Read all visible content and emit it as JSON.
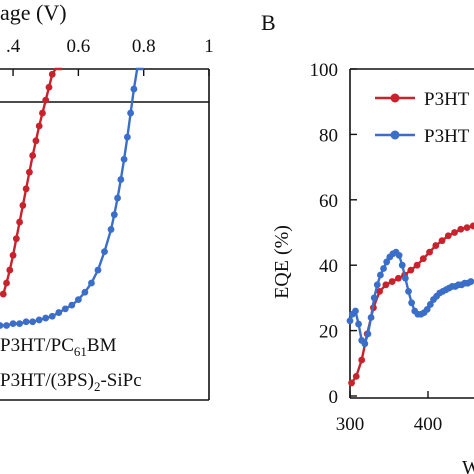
{
  "chart_data": [
    {
      "type": "line",
      "panel": "left (partially visible)",
      "xlabel_visible_fragment": "age (V)",
      "x_tick_labels": [
        ".4",
        "0.6",
        "0.8",
        "1"
      ],
      "x_ticks": [
        0.4,
        0.6,
        0.8,
        1.0
      ],
      "xlim": [
        0.36,
        1.0
      ],
      "ylim": [
        -8,
        2
      ],
      "zero_line_y": 0,
      "legend_position": "bottom",
      "series": [
        {
          "name": "P3HT/PC61BM",
          "legend_main": "P3HT/PC",
          "legend_sub": "61",
          "legend_tail": "BM",
          "color": "#c8232c",
          "marker": "circle",
          "x": [
            0.37,
            0.38,
            0.39,
            0.4,
            0.41,
            0.42,
            0.43,
            0.44,
            0.45,
            0.46,
            0.47,
            0.48,
            0.49,
            0.5,
            0.51,
            0.52,
            0.53,
            0.54,
            0.55
          ],
          "y": [
            -5.2,
            -4.9,
            -4.55,
            -4.15,
            -3.7,
            -3.25,
            -2.8,
            -2.35,
            -1.9,
            -1.45,
            -1.05,
            -0.65,
            -0.3,
            0.05,
            0.4,
            0.75,
            1.1,
            1.45,
            1.85
          ]
        },
        {
          "name": "P3HT/(3PS)2-SiPc",
          "legend_main": "P3HT/(3PS)",
          "legend_sub": "2",
          "legend_tail": "-SiPc",
          "color": "#3b6ec9",
          "marker": "circle",
          "x": [
            0.36,
            0.38,
            0.4,
            0.42,
            0.44,
            0.46,
            0.48,
            0.5,
            0.52,
            0.54,
            0.56,
            0.58,
            0.6,
            0.62,
            0.64,
            0.66,
            0.68,
            0.7,
            0.71,
            0.72,
            0.73,
            0.74,
            0.75,
            0.76,
            0.77,
            0.78,
            0.79,
            0.8
          ],
          "y": [
            -6.05,
            -6.05,
            -6.0,
            -6.0,
            -5.95,
            -5.95,
            -5.9,
            -5.85,
            -5.8,
            -5.7,
            -5.6,
            -5.5,
            -5.35,
            -5.15,
            -4.9,
            -4.55,
            -4.05,
            -3.45,
            -3.05,
            -2.6,
            -2.1,
            -1.55,
            -0.95,
            -0.3,
            0.35,
            1.0,
            1.6,
            2.1
          ]
        }
      ]
    },
    {
      "type": "line",
      "panel": "B",
      "panel_label": "B",
      "ylabel": "EQE (%)",
      "xlabel_visible_fragment": "W",
      "x_tick_labels": [
        "300",
        "400"
      ],
      "x_ticks": [
        300,
        400
      ],
      "xlim": [
        300,
        460
      ],
      "y_tick_labels": [
        "0",
        "20",
        "40",
        "60",
        "80",
        "100"
      ],
      "y_ticks": [
        0,
        20,
        40,
        60,
        80,
        100
      ],
      "ylim": [
        0,
        100
      ],
      "legend_position": "top-right",
      "series": [
        {
          "legend_fragment": "P3HT",
          "color": "#c8232c",
          "marker": "circle",
          "x": [
            302,
            308,
            315,
            322,
            330,
            338,
            346,
            354,
            362,
            370,
            378,
            386,
            394,
            402,
            410,
            418,
            426,
            434,
            442,
            450,
            458
          ],
          "y": [
            4,
            6,
            11,
            19,
            27,
            32,
            34,
            35,
            36,
            37,
            38.5,
            40,
            42,
            44,
            46,
            47.5,
            49,
            50,
            51,
            51.5,
            52
          ]
        },
        {
          "legend_fragment": "P3HT",
          "color": "#3b6ec9",
          "marker": "circle",
          "x": [
            300,
            303,
            307,
            311,
            315,
            319,
            323,
            327,
            331,
            335,
            339,
            343,
            347,
            351,
            355,
            359,
            363,
            367,
            371,
            375,
            379,
            383,
            387,
            391,
            395,
            399,
            403,
            407,
            411,
            415,
            419,
            423,
            427,
            431,
            435,
            439,
            443,
            447,
            451,
            455,
            459
          ],
          "y": [
            23,
            25,
            26,
            22,
            17,
            16,
            19,
            24,
            30,
            34,
            37,
            39,
            41,
            42.5,
            43.5,
            44,
            43,
            40,
            36,
            32,
            28.5,
            26,
            25,
            25,
            25.5,
            26.5,
            28,
            29.5,
            30.5,
            31.5,
            32,
            32.5,
            33,
            33.5,
            33.5,
            34,
            34,
            34.5,
            34.5,
            35,
            35
          ]
        }
      ]
    }
  ]
}
